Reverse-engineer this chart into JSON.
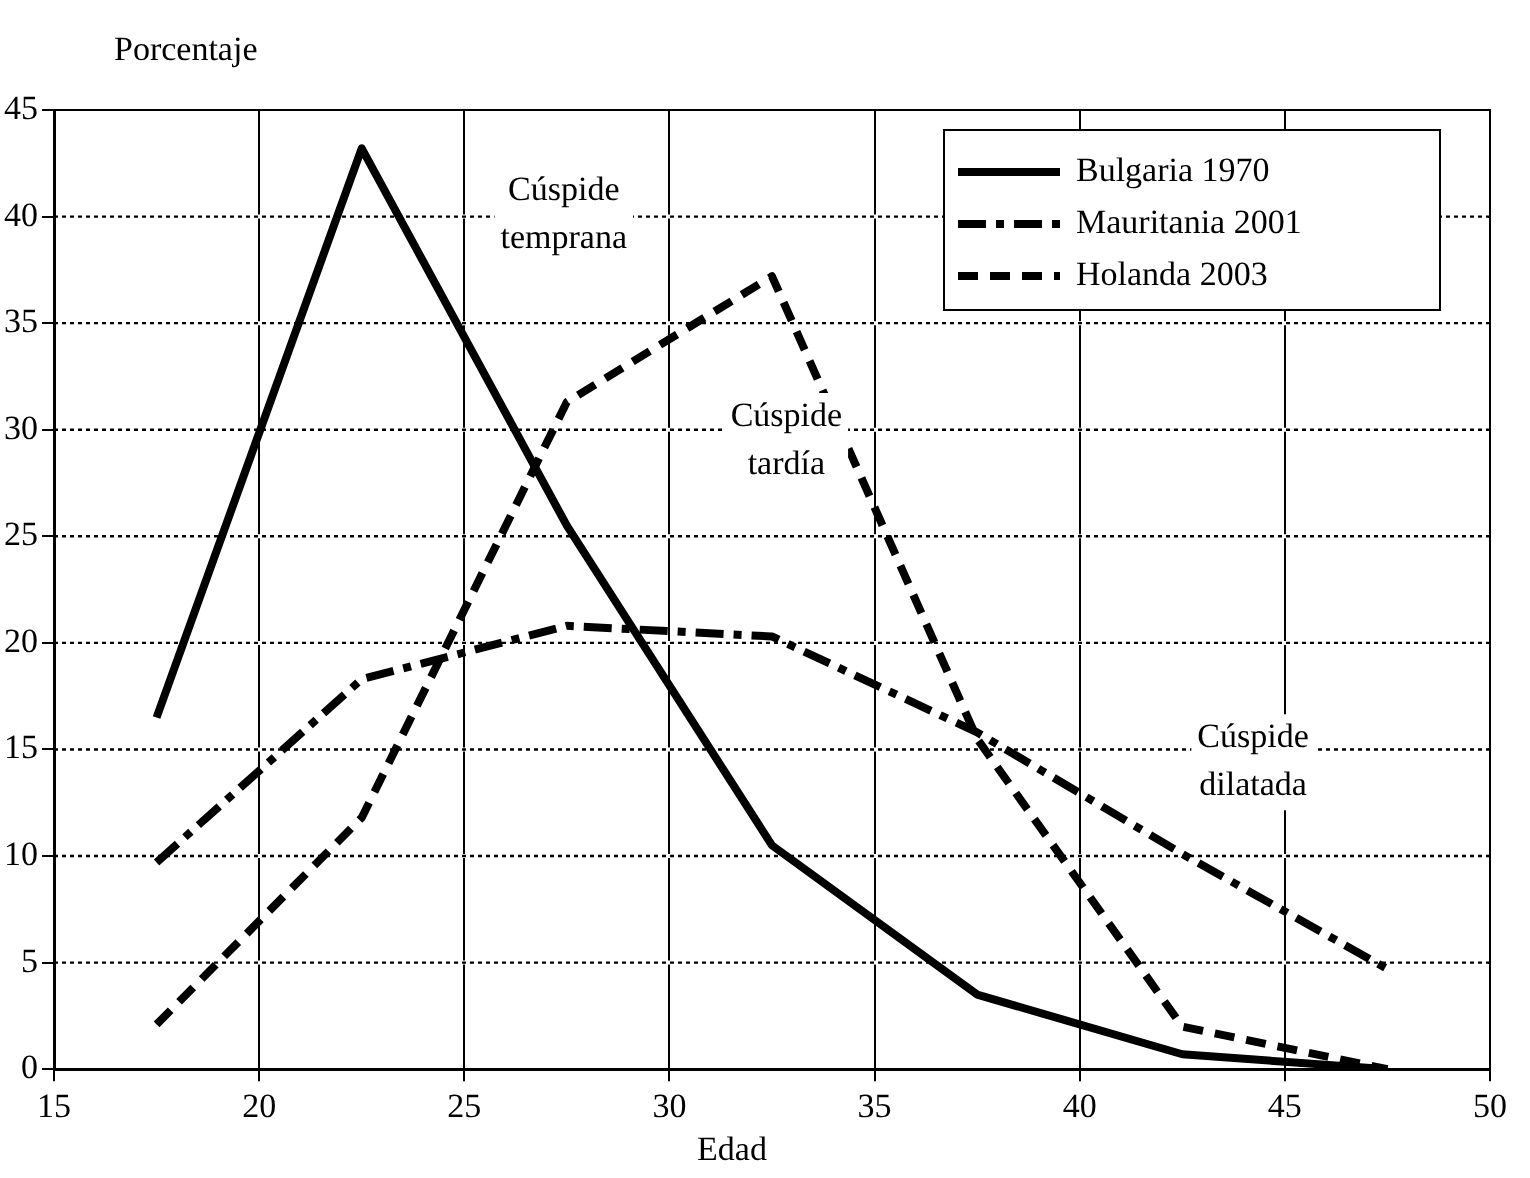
{
  "chart_data": {
    "type": "line",
    "xlabel": "Edad",
    "ylabel": "Porcentaje",
    "x": [
      17.5,
      22.5,
      27.5,
      32.5,
      37.5,
      42.5,
      47.5
    ],
    "series": [
      {
        "name": "Bulgaria 1970",
        "color": "#000000",
        "line_style": "solid",
        "values": [
          16.5,
          43.2,
          25.5,
          10.5,
          3.5,
          0.7,
          0
        ]
      },
      {
        "name": "Mauritania 2001",
        "color": "#000000",
        "line_style": "dashdot",
        "values": [
          9.7,
          18.3,
          20.8,
          20.3,
          15.8,
          10.1,
          4.7
        ]
      },
      {
        "name": "Holanda 2003",
        "color": "#000000",
        "line_style": "dashed",
        "values": [
          2.1,
          11.8,
          31.3,
          37.2,
          15.5,
          2.0,
          0
        ]
      }
    ],
    "xlim": [
      15,
      50
    ],
    "xticks": [
      15,
      20,
      25,
      30,
      35,
      40,
      45,
      50
    ],
    "ylim": [
      0,
      45
    ],
    "yticks": [
      0,
      5,
      10,
      15,
      20,
      25,
      30,
      35,
      40,
      45
    ],
    "grid": true,
    "legend": "top right",
    "marker": "none",
    "annotations": [
      "Cúspide\ntemprana",
      "Cúspide\ntardía",
      "Cúspide\ndilatada"
    ]
  }
}
